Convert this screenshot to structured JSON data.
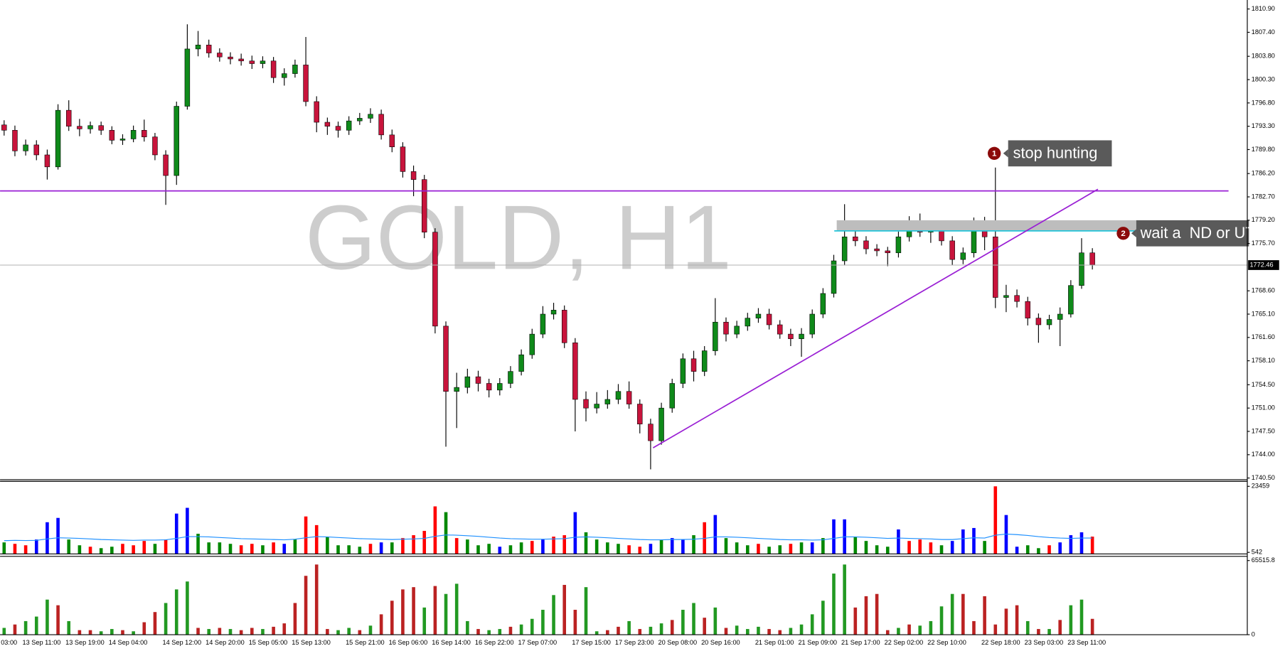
{
  "chart_data": [
    {
      "type": "candlestick",
      "title": "GOLD, H1",
      "categories": [
        "03:00",
        null,
        "13 Sep 11:00",
        null,
        null,
        null,
        "13 Sep 19:00",
        null,
        null,
        null,
        "14 Sep 04:00",
        null,
        null,
        null,
        null,
        "14 Sep 12:00",
        null,
        null,
        null,
        "14 Sep 20:00",
        null,
        null,
        null,
        "15 Sep 05:00",
        null,
        null,
        null,
        "15 Sep 13:00",
        null,
        null,
        null,
        null,
        "15 Sep 21:00",
        null,
        null,
        null,
        "16 Sep 06:00",
        null,
        null,
        null,
        "16 Sep 14:00",
        null,
        null,
        null,
        "16 Sep 22:00",
        null,
        null,
        null,
        "17 Sep 07:00",
        null,
        null,
        null,
        null,
        "17 Sep 15:00",
        null,
        null,
        null,
        "17 Sep 23:00",
        null,
        null,
        null,
        "20 Sep 08:00",
        null,
        null,
        null,
        "20 Sep 16:00",
        null,
        null,
        null,
        null,
        "21 Sep 01:00",
        null,
        null,
        null,
        "21 Sep 09:00",
        null,
        null,
        null,
        "21 Sep 17:00",
        null,
        null,
        null,
        "22 Sep 02:00",
        null,
        null,
        null,
        "22 Sep 10:00",
        null,
        null,
        null,
        null,
        "22 Sep 18:00",
        null,
        null,
        null,
        "23 Sep 03:00",
        null,
        null,
        null,
        "23 Sep 11:00",
        null,
        null
      ],
      "open": [
        1793.5,
        1792.7,
        1789.6,
        1790.5,
        1789.0,
        1787.2,
        1795.7,
        1793.3,
        1792.9,
        1793.4,
        1792.7,
        1791.2,
        1791.4,
        1792.7,
        1791.7,
        1789.0,
        1785.9,
        1796.3,
        1804.9,
        1805.5,
        1804.3,
        1803.7,
        1803.4,
        1803.1,
        1802.7,
        1803.1,
        1800.6,
        1801.2,
        1802.5,
        1797.0,
        1793.9,
        1793.3,
        1792.7,
        1794.1,
        1794.5,
        1795.1,
        1792.0,
        1790.2,
        1786.5,
        1785.3,
        1777.4,
        1763.3,
        1753.5,
        1754.1,
        1755.7,
        1754.7,
        1753.7,
        1754.7,
        1756.5,
        1759.0,
        1762.1,
        1765.1,
        1765.7,
        1760.8,
        1752.3,
        1751.0,
        1751.6,
        1752.3,
        1753.5,
        1751.6,
        1748.6,
        1746.1,
        1751.0,
        1754.7,
        1758.4,
        1756.5,
        1759.6,
        1763.9,
        1762.1,
        1763.3,
        1764.5,
        1765.1,
        1763.5,
        1762.1,
        1761.4,
        1762.1,
        1765.1,
        1768.2,
        1773.1,
        1776.7,
        1776.1,
        1774.9,
        1774.6,
        1774.3,
        1776.7,
        1778.0,
        1777.4,
        1777.8,
        1776.1,
        1773.3,
        1774.3,
        1778.0,
        1776.7,
        1767.6,
        1767.9,
        1767.0,
        1764.5,
        1763.5,
        1764.3,
        1765.1,
        1769.4,
        1774.3
      ],
      "high": [
        1794.2,
        1793.4,
        1791.3,
        1791.2,
        1789.8,
        1796.6,
        1797.2,
        1794.4,
        1794.0,
        1794.0,
        1793.3,
        1792.1,
        1793.4,
        1794.3,
        1792.3,
        1789.7,
        1797.0,
        1808.6,
        1807.6,
        1806.3,
        1805.0,
        1804.4,
        1804.2,
        1803.9,
        1803.8,
        1803.7,
        1802.0,
        1803.3,
        1806.7,
        1797.8,
        1794.6,
        1794.0,
        1794.8,
        1795.3,
        1796.0,
        1795.8,
        1792.8,
        1790.9,
        1787.4,
        1786.0,
        1778.0,
        1764.0,
        1756.3,
        1756.9,
        1756.6,
        1755.4,
        1755.5,
        1757.3,
        1759.8,
        1762.9,
        1766.3,
        1766.8,
        1766.4,
        1761.5,
        1753.5,
        1753.4,
        1753.7,
        1754.6,
        1755.0,
        1752.3,
        1749.4,
        1751.8,
        1755.4,
        1759.2,
        1759.6,
        1760.3,
        1767.5,
        1764.6,
        1764.1,
        1765.3,
        1766.0,
        1765.9,
        1764.2,
        1762.9,
        1763.0,
        1765.8,
        1769.0,
        1774.0,
        1781.6,
        1777.8,
        1776.8,
        1775.6,
        1775.2,
        1777.5,
        1779.8,
        1780.2,
        1778.9,
        1778.5,
        1776.8,
        1775.1,
        1779.6,
        1779.7,
        1787.1,
        1769.5,
        1768.8,
        1767.7,
        1765.2,
        1765.0,
        1766.1,
        1770.2,
        1776.5,
        1775.0
      ],
      "low": [
        1791.9,
        1788.8,
        1788.9,
        1788.2,
        1785.3,
        1786.8,
        1792.6,
        1791.8,
        1792.2,
        1792.0,
        1790.6,
        1790.5,
        1790.9,
        1791.0,
        1788.2,
        1781.5,
        1784.5,
        1795.8,
        1803.8,
        1803.6,
        1803.0,
        1802.6,
        1802.4,
        1801.9,
        1802.0,
        1799.8,
        1799.4,
        1800.6,
        1796.3,
        1792.4,
        1792.0,
        1791.6,
        1792.0,
        1793.5,
        1793.8,
        1791.3,
        1789.4,
        1785.6,
        1782.8,
        1776.5,
        1762.2,
        1745.2,
        1748.0,
        1753.2,
        1753.5,
        1752.6,
        1752.9,
        1754.0,
        1755.9,
        1758.4,
        1761.5,
        1764.3,
        1760.0,
        1747.5,
        1749.0,
        1750.2,
        1750.9,
        1751.6,
        1750.9,
        1747.2,
        1741.8,
        1745.5,
        1750.3,
        1754.0,
        1755.0,
        1755.8,
        1758.9,
        1761.0,
        1761.5,
        1762.6,
        1763.8,
        1762.8,
        1761.4,
        1760.3,
        1758.7,
        1761.5,
        1764.5,
        1767.6,
        1772.4,
        1775.3,
        1774.1,
        1773.8,
        1772.3,
        1773.6,
        1776.0,
        1776.7,
        1775.8,
        1775.4,
        1772.5,
        1772.6,
        1773.6,
        1774.7,
        1766.0,
        1765.4,
        1766.1,
        1763.4,
        1760.8,
        1762.8,
        1760.3,
        1764.6,
        1768.9,
        1771.8
      ],
      "close": [
        1792.7,
        1789.6,
        1790.5,
        1789.0,
        1787.2,
        1795.7,
        1793.3,
        1792.9,
        1793.4,
        1792.7,
        1791.2,
        1791.4,
        1792.7,
        1791.7,
        1789.0,
        1785.9,
        1796.3,
        1804.9,
        1805.5,
        1804.3,
        1803.7,
        1803.4,
        1803.1,
        1802.7,
        1803.1,
        1800.6,
        1801.2,
        1802.5,
        1797.0,
        1793.9,
        1793.3,
        1792.7,
        1794.1,
        1794.5,
        1795.1,
        1792.0,
        1790.2,
        1786.5,
        1785.3,
        1777.4,
        1763.3,
        1753.5,
        1754.1,
        1755.7,
        1754.7,
        1753.7,
        1754.7,
        1756.5,
        1759.0,
        1762.1,
        1765.1,
        1765.7,
        1760.8,
        1752.3,
        1751.0,
        1751.6,
        1752.3,
        1753.5,
        1751.6,
        1748.6,
        1746.1,
        1751.0,
        1754.7,
        1758.4,
        1756.5,
        1759.6,
        1763.9,
        1762.1,
        1763.3,
        1764.5,
        1765.1,
        1763.5,
        1762.1,
        1761.4,
        1762.1,
        1765.1,
        1768.2,
        1773.1,
        1776.7,
        1776.1,
        1774.9,
        1774.6,
        1774.3,
        1776.7,
        1778.0,
        1777.4,
        1777.8,
        1776.1,
        1773.3,
        1774.3,
        1778.0,
        1776.7,
        1767.6,
        1767.9,
        1767.0,
        1764.5,
        1763.5,
        1764.3,
        1765.1,
        1769.4,
        1774.3,
        1772.5
      ],
      "up_color": "#0f8a1a",
      "down_color": "#c8143c",
      "wick_color": "#000000",
      "ylim": [
        1740.25,
        1812.25
      ],
      "yticks": [
        {
          "value": 1740.5,
          "label": "1740.50"
        },
        {
          "value": 1744,
          "label": "1744.00"
        },
        {
          "value": 1747.5,
          "label": "1747.50"
        },
        {
          "value": 1751,
          "label": "1751.00"
        },
        {
          "value": 1754.5,
          "label": "1754.50"
        },
        {
          "value": 1758.1,
          "label": "1758.10"
        },
        {
          "value": 1761.6,
          "label": "1761.60"
        },
        {
          "value": 1765.1,
          "label": "1765.10"
        },
        {
          "value": 1768.6,
          "label": "1768.60"
        },
        {
          "value": 1775.7,
          "label": "1775.70"
        },
        {
          "value": 1779.2,
          "label": "1779.20"
        },
        {
          "value": 1782.7,
          "label": "1782.70"
        },
        {
          "value": 1786.2,
          "label": "1786.20"
        },
        {
          "value": 1789.8,
          "label": "1789.80"
        },
        {
          "value": 1793.3,
          "label": "1793.30"
        },
        {
          "value": 1796.8,
          "label": "1796.80"
        },
        {
          "value": 1800.3,
          "label": "1800.30"
        },
        {
          "value": 1803.8,
          "label": "1803.80"
        },
        {
          "value": 1807.4,
          "label": "1807.40"
        },
        {
          "value": 1810.9,
          "label": "1810.90"
        }
      ],
      "current_price": {
        "value": 1772.46,
        "label": "1772.46"
      },
      "annotations": [
        {
          "number": "1",
          "text": "stop hunting"
        },
        {
          "number": "2",
          "text": "wait a  ND or UT"
        }
      ]
    },
    {
      "type": "bar",
      "values": [
        4000,
        3500,
        3000,
        5000,
        11000,
        12500,
        5000,
        3000,
        2500,
        2000,
        2500,
        3500,
        3000,
        4500,
        3500,
        5000,
        14000,
        16000,
        7000,
        4000,
        4000,
        3500,
        3000,
        3500,
        3000,
        4000,
        3500,
        5000,
        13000,
        10000,
        6000,
        3000,
        3000,
        2500,
        3500,
        4000,
        4000,
        5500,
        6500,
        8000,
        16500,
        14500,
        5500,
        5000,
        3000,
        3500,
        2500,
        3000,
        4000,
        4500,
        5000,
        6000,
        6500,
        14500,
        7500,
        5000,
        4000,
        3500,
        3000,
        2500,
        3500,
        5000,
        5500,
        5000,
        6500,
        11000,
        13500,
        5500,
        4000,
        3000,
        3500,
        2500,
        3000,
        3500,
        4000,
        4000,
        5500,
        12000,
        12000,
        6000,
        4500,
        3000,
        2500,
        8500,
        4500,
        5000,
        4000,
        3000,
        4500,
        8500,
        9000,
        4500,
        23459,
        13500,
        2500,
        3000,
        2000,
        3000,
        4000,
        6500,
        7500,
        6000
      ],
      "colors": [
        "#080",
        "#f00",
        "#f00",
        "#00f",
        "#00f",
        "#00f",
        "#080",
        "#080",
        "#f00",
        "#080",
        "#080",
        "#f00",
        "#f00",
        "#f00",
        "#080",
        "#f00",
        "#00f",
        "#00f",
        "#080",
        "#080",
        "#080",
        "#080",
        "#f00",
        "#f00",
        "#080",
        "#f00",
        "#00f",
        "#080",
        "#f00",
        "#f00",
        "#080",
        "#080",
        "#080",
        "#080",
        "#f00",
        "#00f",
        "#080",
        "#f00",
        "#f00",
        "#f00",
        "#f00",
        "#080",
        "#f00",
        "#080",
        "#080",
        "#080",
        "#00f",
        "#080",
        "#080",
        "#f00",
        "#00f",
        "#f00",
        "#f00",
        "#00f",
        "#080",
        "#080",
        "#080",
        "#080",
        "#f00",
        "#f00",
        "#00f",
        "#080",
        "#00f",
        "#00f",
        "#080",
        "#f00",
        "#00f",
        "#080",
        "#080",
        "#080",
        "#f00",
        "#080",
        "#080",
        "#f00",
        "#080",
        "#00f",
        "#080",
        "#00f",
        "#00f",
        "#080",
        "#080",
        "#080",
        "#080",
        "#00f",
        "#f00",
        "#f00",
        "#f00",
        "#080",
        "#00f",
        "#00f",
        "#00f",
        "#080",
        "#f00",
        "#00f",
        "#00f",
        "#080",
        "#080",
        "#f00",
        "#00f",
        "#00f",
        "#00f",
        "#f00"
      ],
      "ma_values": [
        4600,
        4700,
        4650,
        4700,
        5200,
        5600,
        5500,
        5400,
        5200,
        5000,
        4900,
        4800,
        4700,
        4800,
        4800,
        4900,
        5400,
        6000,
        6000,
        5900,
        5700,
        5500,
        5300,
        5200,
        5100,
        5000,
        4900,
        5100,
        5600,
        6000,
        5900,
        5700,
        5500,
        5300,
        5200,
        5100,
        5000,
        5100,
        5200,
        5400,
        6100,
        6600,
        6500,
        6300,
        6100,
        5800,
        5500,
        5300,
        5200,
        5100,
        5100,
        5200,
        5300,
        5800,
        5900,
        5800,
        5600,
        5400,
        5200,
        5000,
        4900,
        4900,
        5000,
        5000,
        5100,
        5400,
        5900,
        5900,
        5800,
        5600,
        5400,
        5200,
        5000,
        4900,
        4900,
        4800,
        4900,
        5400,
        5900,
        5900,
        5800,
        5600,
        5400,
        5500,
        5400,
        5300,
        5200,
        5000,
        5000,
        5300,
        5600,
        5500,
        6500,
        6900,
        6700,
        6400,
        6000,
        5700,
        5500,
        5400,
        5500,
        5500
      ],
      "ma_color": "#1e90ff",
      "ylim": [
        0,
        25200
      ],
      "yticks": [
        542,
        23459
      ]
    },
    {
      "type": "bar",
      "values": [
        6000,
        9000,
        12000,
        16000,
        31000,
        26000,
        12000,
        4000,
        4000,
        3000,
        5000,
        4000,
        3000,
        11000,
        20000,
        28000,
        40000,
        47000,
        6000,
        5000,
        6000,
        5000,
        4000,
        6000,
        5000,
        7000,
        10000,
        28000,
        52000,
        62000,
        5000,
        4000,
        6000,
        4000,
        8000,
        18000,
        30000,
        40000,
        42000,
        24000,
        43000,
        36000,
        45000,
        12000,
        5000,
        4000,
        5000,
        7000,
        9000,
        14000,
        22000,
        35000,
        44000,
        22000,
        42000,
        3000,
        4000,
        7000,
        12000,
        5000,
        7000,
        10000,
        13000,
        22000,
        28000,
        15000,
        24000,
        6000,
        8000,
        5000,
        7000,
        5000,
        4000,
        6000,
        9000,
        18000,
        30000,
        54000,
        62000,
        24000,
        34000,
        36000,
        4000,
        6000,
        9000,
        8000,
        12000,
        25000,
        36000,
        36000,
        12000,
        34000,
        9000,
        23000,
        26000,
        12000,
        5000,
        5000,
        13000,
        26000,
        31000,
        14000
      ],
      "colors": [
        "#292",
        "#b22",
        "#292",
        "#292",
        "#292",
        "#b22",
        "#292",
        "#b22",
        "#b22",
        "#292",
        "#292",
        "#b22",
        "#292",
        "#b22",
        "#b22",
        "#292",
        "#292",
        "#292",
        "#b22",
        "#292",
        "#b22",
        "#292",
        "#b22",
        "#b22",
        "#292",
        "#b22",
        "#b22",
        "#b22",
        "#b22",
        "#b22",
        "#b22",
        "#292",
        "#292",
        "#b22",
        "#292",
        "#b22",
        "#b22",
        "#b22",
        "#b22",
        "#292",
        "#b22",
        "#292",
        "#292",
        "#292",
        "#b22",
        "#292",
        "#292",
        "#b22",
        "#292",
        "#292",
        "#292",
        "#292",
        "#b22",
        "#b22",
        "#292",
        "#292",
        "#b22",
        "#b22",
        "#292",
        "#b22",
        "#292",
        "#292",
        "#b22",
        "#292",
        "#292",
        "#b22",
        "#292",
        "#b22",
        "#292",
        "#292",
        "#292",
        "#b22",
        "#b22",
        "#292",
        "#292",
        "#292",
        "#292",
        "#292",
        "#292",
        "#b22",
        "#b22",
        "#b22",
        "#b22",
        "#292",
        "#b22",
        "#292",
        "#292",
        "#292",
        "#292",
        "#b22",
        "#b22",
        "#b22",
        "#b22",
        "#b22",
        "#b22",
        "#292",
        "#b22",
        "#292",
        "#b22",
        "#292",
        "#292",
        "#b22"
      ],
      "ylim": [
        0,
        69200
      ],
      "yticks": [
        65515.8,
        0
      ]
    }
  ]
}
